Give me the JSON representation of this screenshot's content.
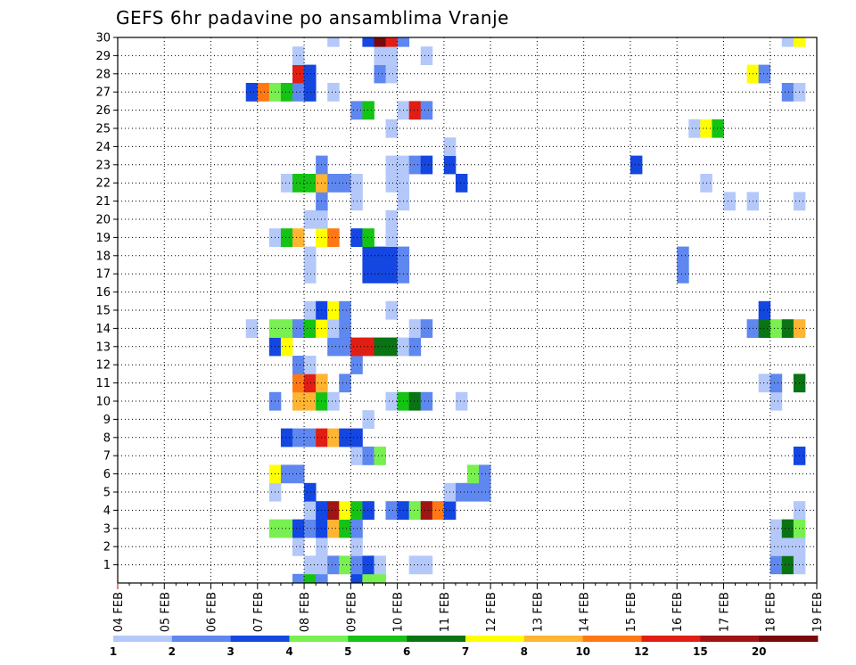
{
  "chart_data": {
    "type": "heatmap",
    "title": "GEFS 6hr padavine po ansamblima Vranje",
    "xlabel": "",
    "ylabel": "",
    "x_tick_labels": [
      "04 FEB",
      "05 FEB",
      "06 FEB",
      "07 FEB",
      "08 FEB",
      "09 FEB",
      "10 FEB",
      "11 FEB",
      "12 FEB",
      "13 FEB",
      "14 FEB",
      "15 FEB",
      "16 FEB",
      "17 FEB",
      "18 FEB",
      "19 FEB"
    ],
    "y_tick_labels": [
      "1",
      "2",
      "3",
      "4",
      "5",
      "6",
      "7",
      "8",
      "9",
      "10",
      "11",
      "12",
      "13",
      "14",
      "15",
      "16",
      "17",
      "18",
      "19",
      "20",
      "21",
      "22",
      "23",
      "24",
      "25",
      "26",
      "27",
      "28",
      "29",
      "30"
    ],
    "xlim": [
      0,
      60
    ],
    "ylim": [
      0,
      30
    ],
    "grid": true,
    "legend_position": "bottom",
    "legend_labels": [
      "1",
      "2",
      "3",
      "4",
      "5",
      "6",
      "7",
      "8",
      "10",
      "12",
      "15",
      "20"
    ],
    "colors": [
      "#b4c8fa",
      "#5f87f0",
      "#1446e1",
      "#78f050",
      "#14c314",
      "#0a7314",
      "#ffff00",
      "#ffb432",
      "#ff7814",
      "#e11e14",
      "#a01414",
      "#780a0a"
    ],
    "rows": [
      {
        "member": 0,
        "cells": [
          [
            18,
            1
          ],
          [
            19,
            4
          ],
          [
            20,
            1
          ],
          [
            23,
            2
          ],
          [
            24,
            3
          ],
          [
            25,
            3
          ]
        ]
      },
      {
        "member": 1,
        "cells": [
          [
            19,
            0
          ],
          [
            20,
            0
          ],
          [
            21,
            1
          ],
          [
            22,
            3
          ],
          [
            23,
            1
          ],
          [
            24,
            2
          ],
          [
            25,
            0
          ],
          [
            28,
            0
          ],
          [
            29,
            0
          ],
          [
            59,
            1
          ],
          [
            60,
            5
          ],
          [
            61,
            0
          ]
        ]
      },
      {
        "member": 2,
        "cells": [
          [
            18,
            0
          ],
          [
            20,
            0
          ],
          [
            23,
            0
          ],
          [
            59,
            0
          ],
          [
            60,
            0
          ],
          [
            61,
            0
          ]
        ]
      },
      {
        "member": 3,
        "cells": [
          [
            16,
            3
          ],
          [
            17,
            3
          ],
          [
            18,
            2
          ],
          [
            19,
            1
          ],
          [
            20,
            2
          ],
          [
            21,
            7
          ],
          [
            22,
            4
          ],
          [
            23,
            1
          ],
          [
            59,
            0
          ],
          [
            60,
            5
          ],
          [
            61,
            3
          ]
        ]
      },
      {
        "member": 4,
        "cells": [
          [
            19,
            0
          ],
          [
            20,
            2
          ],
          [
            21,
            10
          ],
          [
            22,
            6
          ],
          [
            23,
            4
          ],
          [
            24,
            2
          ],
          [
            26,
            1
          ],
          [
            27,
            2
          ],
          [
            28,
            3
          ],
          [
            29,
            10
          ],
          [
            30,
            8
          ],
          [
            31,
            2
          ],
          [
            61,
            0
          ]
        ]
      },
      {
        "member": 5,
        "cells": [
          [
            16,
            0
          ],
          [
            19,
            2
          ],
          [
            31,
            0
          ],
          [
            32,
            1
          ],
          [
            33,
            1
          ],
          [
            34,
            1
          ]
        ]
      },
      {
        "member": 6,
        "cells": [
          [
            16,
            6
          ],
          [
            17,
            1
          ],
          [
            18,
            1
          ],
          [
            33,
            3
          ],
          [
            34,
            1
          ]
        ]
      },
      {
        "member": 7,
        "cells": [
          [
            23,
            0
          ],
          [
            24,
            1
          ],
          [
            25,
            3
          ],
          [
            61,
            2
          ]
        ]
      },
      {
        "member": 8,
        "cells": [
          [
            17,
            2
          ],
          [
            18,
            1
          ],
          [
            19,
            1
          ],
          [
            20,
            9
          ],
          [
            21,
            7
          ],
          [
            22,
            2
          ],
          [
            23,
            2
          ]
        ]
      },
      {
        "member": 9,
        "cells": [
          [
            24,
            0
          ]
        ]
      },
      {
        "member": 10,
        "cells": [
          [
            16,
            1
          ],
          [
            18,
            7
          ],
          [
            19,
            7
          ],
          [
            20,
            4
          ],
          [
            21,
            0
          ],
          [
            26,
            0
          ],
          [
            27,
            4
          ],
          [
            28,
            5
          ],
          [
            29,
            1
          ],
          [
            32,
            0
          ],
          [
            59,
            0
          ]
        ]
      },
      {
        "member": 11,
        "cells": [
          [
            18,
            8
          ],
          [
            19,
            9
          ],
          [
            20,
            7
          ],
          [
            22,
            1
          ],
          [
            58,
            0
          ],
          [
            59,
            1
          ],
          [
            61,
            5
          ]
        ]
      },
      {
        "member": 12,
        "cells": [
          [
            18,
            1
          ],
          [
            19,
            0
          ],
          [
            23,
            1
          ]
        ]
      },
      {
        "member": 13,
        "cells": [
          [
            16,
            2
          ],
          [
            17,
            6
          ],
          [
            21,
            1
          ],
          [
            22,
            1
          ],
          [
            23,
            9
          ],
          [
            24,
            9
          ],
          [
            25,
            5
          ],
          [
            26,
            5
          ],
          [
            27,
            0
          ],
          [
            28,
            1
          ]
        ]
      },
      {
        "member": 14,
        "cells": [
          [
            14,
            0
          ],
          [
            16,
            3
          ],
          [
            17,
            3
          ],
          [
            18,
            1
          ],
          [
            19,
            4
          ],
          [
            20,
            6
          ],
          [
            21,
            0
          ],
          [
            22,
            1
          ],
          [
            28,
            0
          ],
          [
            29,
            1
          ],
          [
            57,
            1
          ],
          [
            58,
            5
          ],
          [
            59,
            3
          ],
          [
            60,
            5
          ],
          [
            61,
            7
          ]
        ]
      },
      {
        "member": 15,
        "cells": [
          [
            19,
            0
          ],
          [
            20,
            2
          ],
          [
            21,
            6
          ],
          [
            22,
            1
          ],
          [
            26,
            0
          ],
          [
            58,
            2
          ]
        ]
      },
      {
        "member": 16,
        "cells": []
      },
      {
        "member": 17,
        "cells": [
          [
            19,
            0
          ],
          [
            24,
            2
          ],
          [
            25,
            2
          ],
          [
            26,
            2
          ],
          [
            27,
            1
          ],
          [
            51,
            1
          ]
        ]
      },
      {
        "member": 18,
        "cells": [
          [
            19,
            0
          ],
          [
            24,
            2
          ],
          [
            25,
            2
          ],
          [
            26,
            2
          ],
          [
            27,
            1
          ],
          [
            51,
            1
          ]
        ]
      },
      {
        "member": 19,
        "cells": [
          [
            16,
            0
          ],
          [
            17,
            4
          ],
          [
            18,
            7
          ],
          [
            20,
            6
          ],
          [
            21,
            8
          ],
          [
            23,
            2
          ],
          [
            24,
            4
          ],
          [
            26,
            0
          ]
        ]
      },
      {
        "member": 20,
        "cells": [
          [
            19,
            0
          ],
          [
            20,
            0
          ],
          [
            26,
            0
          ]
        ]
      },
      {
        "member": 21,
        "cells": [
          [
            20,
            1
          ],
          [
            23,
            0
          ],
          [
            27,
            0
          ],
          [
            55,
            0
          ],
          [
            57,
            0
          ],
          [
            61,
            0
          ]
        ]
      },
      {
        "member": 22,
        "cells": [
          [
            17,
            0
          ],
          [
            18,
            4
          ],
          [
            19,
            4
          ],
          [
            20,
            7
          ],
          [
            21,
            1
          ],
          [
            22,
            1
          ],
          [
            23,
            0
          ],
          [
            26,
            0
          ],
          [
            27,
            0
          ],
          [
            32,
            2
          ],
          [
            53,
            0
          ]
        ]
      },
      {
        "member": 23,
        "cells": [
          [
            20,
            1
          ],
          [
            26,
            0
          ],
          [
            27,
            0
          ],
          [
            28,
            1
          ],
          [
            29,
            2
          ],
          [
            31,
            2
          ],
          [
            47,
            2
          ]
        ]
      },
      {
        "member": 24,
        "cells": [
          [
            31,
            0
          ]
        ]
      },
      {
        "member": 25,
        "cells": [
          [
            26,
            0
          ],
          [
            52,
            0
          ],
          [
            53,
            6
          ],
          [
            54,
            4
          ]
        ]
      },
      {
        "member": 26,
        "cells": [
          [
            23,
            1
          ],
          [
            24,
            4
          ],
          [
            27,
            0
          ],
          [
            28,
            9
          ],
          [
            29,
            1
          ]
        ]
      },
      {
        "member": 27,
        "cells": [
          [
            14,
            2
          ],
          [
            15,
            8
          ],
          [
            16,
            3
          ],
          [
            17,
            4
          ],
          [
            18,
            1
          ],
          [
            19,
            2
          ],
          [
            21,
            0
          ],
          [
            60,
            1
          ],
          [
            61,
            0
          ]
        ]
      },
      {
        "member": 28,
        "cells": [
          [
            18,
            9
          ],
          [
            19,
            2
          ],
          [
            25,
            1
          ],
          [
            26,
            0
          ],
          [
            57,
            6
          ],
          [
            58,
            1
          ]
        ]
      },
      {
        "member": 29,
        "cells": [
          [
            18,
            0
          ],
          [
            25,
            0
          ],
          [
            26,
            0
          ],
          [
            29,
            0
          ]
        ]
      },
      {
        "member": 30,
        "cells": [
          [
            21,
            0
          ],
          [
            24,
            2
          ],
          [
            25,
            11
          ],
          [
            26,
            9
          ],
          [
            27,
            1
          ],
          [
            60,
            0
          ],
          [
            61,
            6
          ]
        ]
      }
    ]
  }
}
